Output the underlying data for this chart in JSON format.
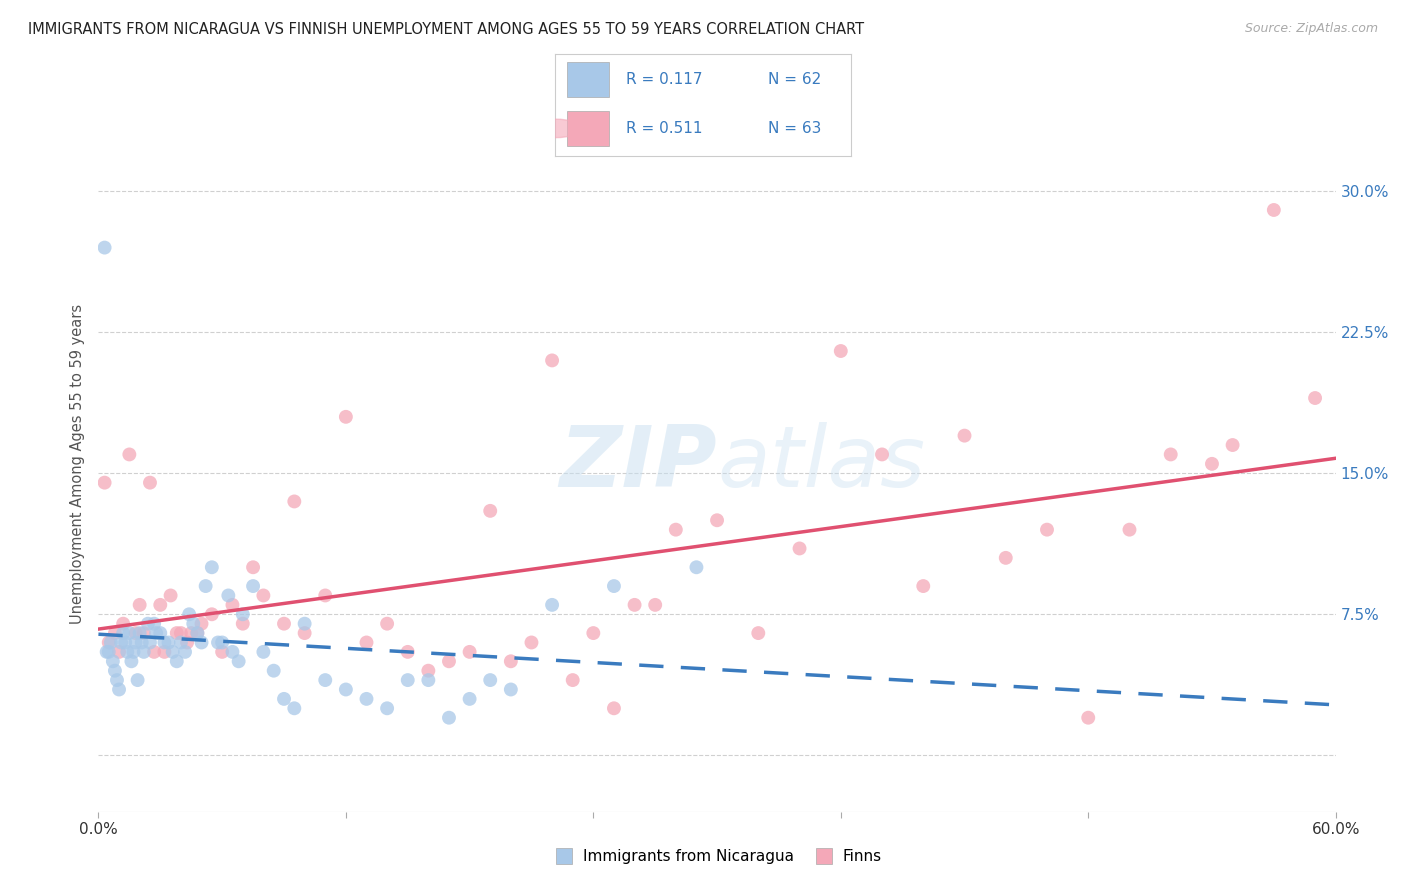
{
  "title": "IMMIGRANTS FROM NICARAGUA VS FINNISH UNEMPLOYMENT AMONG AGES 55 TO 59 YEARS CORRELATION CHART",
  "source": "Source: ZipAtlas.com",
  "ylabel": "Unemployment Among Ages 55 to 59 years",
  "xlim": [
    0.0,
    0.6
  ],
  "ylim": [
    -0.03,
    0.34
  ],
  "yticks_right": [
    0.0,
    0.075,
    0.15,
    0.225,
    0.3
  ],
  "ytick_right_labels": [
    "",
    "7.5%",
    "15.0%",
    "22.5%",
    "30.0%"
  ],
  "watermark": "ZIPatlas",
  "blue_color": "#a8c8e8",
  "pink_color": "#f4a8b8",
  "blue_line_color": "#3a7bbf",
  "pink_line_color": "#e05070",
  "legend_text_color": "#3a7bbf",
  "background_color": "#ffffff",
  "grid_color": "#d0d0d0",
  "blue_scatter_x": [
    0.003,
    0.004,
    0.005,
    0.006,
    0.007,
    0.008,
    0.009,
    0.01,
    0.011,
    0.012,
    0.013,
    0.014,
    0.015,
    0.016,
    0.017,
    0.018,
    0.019,
    0.02,
    0.021,
    0.022,
    0.024,
    0.025,
    0.027,
    0.028,
    0.03,
    0.032,
    0.034,
    0.036,
    0.038,
    0.04,
    0.042,
    0.044,
    0.046,
    0.048,
    0.05,
    0.052,
    0.055,
    0.058,
    0.06,
    0.063,
    0.065,
    0.068,
    0.07,
    0.075,
    0.08,
    0.085,
    0.09,
    0.095,
    0.1,
    0.11,
    0.12,
    0.13,
    0.14,
    0.15,
    0.16,
    0.17,
    0.18,
    0.19,
    0.2,
    0.22,
    0.25,
    0.29
  ],
  "blue_scatter_y": [
    0.27,
    0.055,
    0.055,
    0.06,
    0.05,
    0.045,
    0.04,
    0.035,
    0.06,
    0.065,
    0.06,
    0.055,
    0.065,
    0.05,
    0.055,
    0.06,
    0.04,
    0.065,
    0.06,
    0.055,
    0.07,
    0.06,
    0.07,
    0.065,
    0.065,
    0.06,
    0.06,
    0.055,
    0.05,
    0.06,
    0.055,
    0.075,
    0.07,
    0.065,
    0.06,
    0.09,
    0.1,
    0.06,
    0.06,
    0.085,
    0.055,
    0.05,
    0.075,
    0.09,
    0.055,
    0.045,
    0.03,
    0.025,
    0.07,
    0.04,
    0.035,
    0.03,
    0.025,
    0.04,
    0.04,
    0.02,
    0.03,
    0.04,
    0.035,
    0.08,
    0.09,
    0.1
  ],
  "pink_scatter_x": [
    0.003,
    0.005,
    0.008,
    0.01,
    0.012,
    0.015,
    0.018,
    0.02,
    0.022,
    0.025,
    0.027,
    0.03,
    0.032,
    0.035,
    0.038,
    0.04,
    0.043,
    0.045,
    0.048,
    0.05,
    0.055,
    0.06,
    0.065,
    0.07,
    0.075,
    0.08,
    0.09,
    0.095,
    0.1,
    0.11,
    0.12,
    0.13,
    0.14,
    0.15,
    0.16,
    0.17,
    0.18,
    0.19,
    0.2,
    0.21,
    0.22,
    0.23,
    0.24,
    0.25,
    0.26,
    0.27,
    0.28,
    0.3,
    0.32,
    0.34,
    0.36,
    0.38,
    0.4,
    0.42,
    0.44,
    0.46,
    0.48,
    0.5,
    0.52,
    0.54,
    0.55,
    0.57,
    0.59
  ],
  "pink_scatter_y": [
    0.145,
    0.06,
    0.065,
    0.055,
    0.07,
    0.16,
    0.065,
    0.08,
    0.065,
    0.145,
    0.055,
    0.08,
    0.055,
    0.085,
    0.065,
    0.065,
    0.06,
    0.065,
    0.065,
    0.07,
    0.075,
    0.055,
    0.08,
    0.07,
    0.1,
    0.085,
    0.07,
    0.135,
    0.065,
    0.085,
    0.18,
    0.06,
    0.07,
    0.055,
    0.045,
    0.05,
    0.055,
    0.13,
    0.05,
    0.06,
    0.21,
    0.04,
    0.065,
    0.025,
    0.08,
    0.08,
    0.12,
    0.125,
    0.065,
    0.11,
    0.215,
    0.16,
    0.09,
    0.17,
    0.105,
    0.12,
    0.02,
    0.12,
    0.16,
    0.155,
    0.165,
    0.29,
    0.19
  ]
}
